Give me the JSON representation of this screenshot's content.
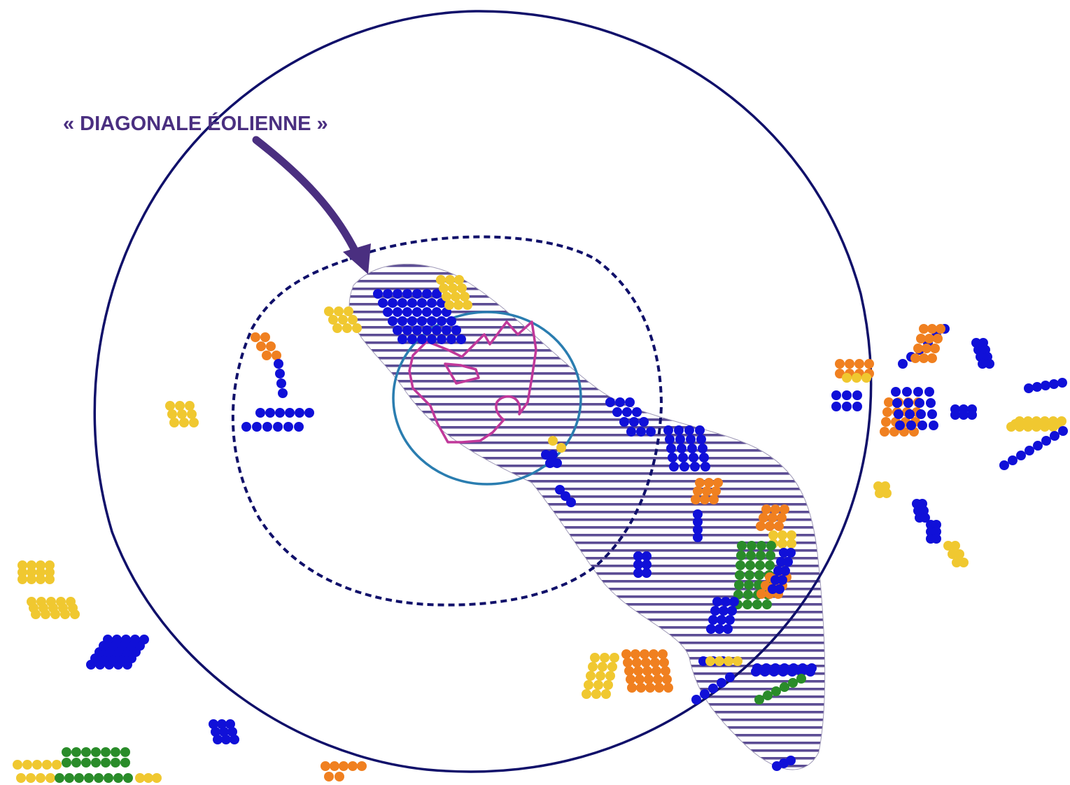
{
  "annotation": {
    "label": "« DIAGONALE ÉOLIENNE »",
    "color": "#4a2f80"
  },
  "colors": {
    "outer_circle": "#10106a",
    "dashed_ring": "#10106a",
    "hatch": "#5c4d94",
    "inner_circle": "#2a7db0",
    "commune_outline": "#c0389a",
    "turbine_built": "#1010d8",
    "turbine_authorized": "#2a8c2a",
    "turbine_pending": "#f08020",
    "turbine_other": "#f0c830"
  }
}
